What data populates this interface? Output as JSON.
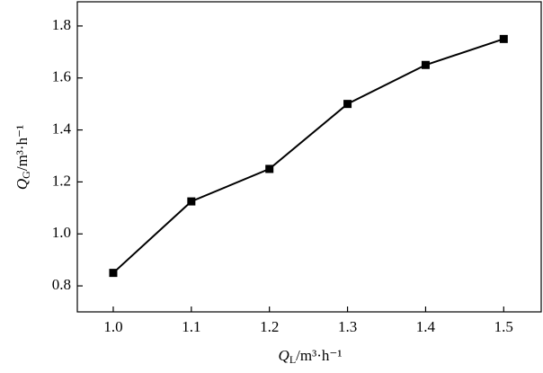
{
  "chart_data": {
    "type": "line",
    "x_label": {
      "symbol": "Q",
      "subscript": "L",
      "unit": "/m³·h⁻¹"
    },
    "y_label": {
      "symbol": "Q",
      "subscript": "G",
      "unit": "/m³·h⁻¹"
    },
    "x": [
      1.0,
      1.1,
      1.2,
      1.3,
      1.4,
      1.5
    ],
    "series": [
      {
        "color": "#000000",
        "values": [
          0.85,
          1.125,
          1.25,
          1.5,
          1.65,
          1.75
        ]
      }
    ],
    "xlim": [
      0.954,
      1.548
    ],
    "xticks": [
      {
        "value": 1.0,
        "label": "1.0"
      },
      1.1,
      1.2,
      1.3,
      1.4,
      1.5
    ],
    "ylim": [
      0.7,
      1.893
    ],
    "yticks": [
      0.8,
      {
        "value": 1.0,
        "label": "1.0"
      },
      1.2,
      1.4,
      1.6,
      1.8
    ],
    "marker": "square"
  }
}
